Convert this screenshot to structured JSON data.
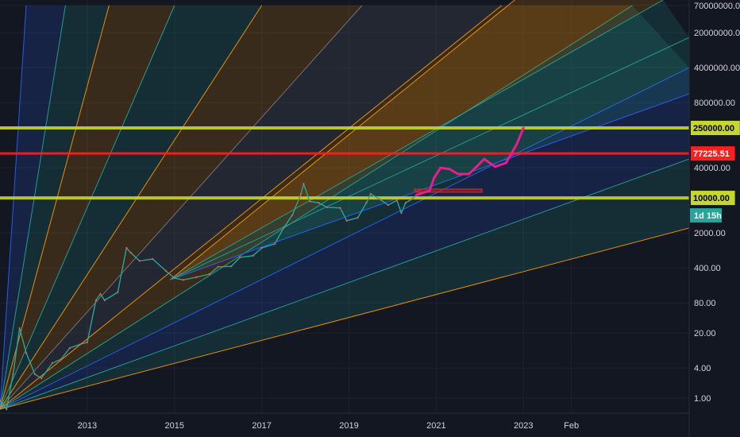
{
  "chart_data": {
    "type": "line",
    "title": "",
    "scale": "log",
    "grid": true,
    "x_ticks": [
      "2013",
      "2015",
      "2017",
      "2019",
      "2021",
      "2023",
      "Feb"
    ],
    "y_ticks": [
      "70000000.00",
      "20000000.00",
      "4000000.00",
      "800000.00",
      "250000.00",
      "77225.51",
      "40000.00",
      "10000.00",
      "2000.00",
      "400.00",
      "80.00",
      "20.00",
      "4.00",
      "1.00"
    ],
    "y_range": [
      0.5,
      90000000
    ],
    "x_range": [
      2011.0,
      2026.8
    ],
    "price_series": {
      "name": "",
      "color": "#26a69a",
      "points": [
        [
          2011.0,
          0.9
        ],
        [
          2011.15,
          0.6
        ],
        [
          2011.3,
          3
        ],
        [
          2011.45,
          25
        ],
        [
          2011.6,
          8
        ],
        [
          2011.8,
          3
        ],
        [
          2011.95,
          2.5
        ],
        [
          2012.2,
          5
        ],
        [
          2012.4,
          6
        ],
        [
          2012.6,
          10
        ],
        [
          2012.85,
          12
        ],
        [
          2013.0,
          13
        ],
        [
          2013.2,
          90
        ],
        [
          2013.3,
          120
        ],
        [
          2013.4,
          90
        ],
        [
          2013.7,
          130
        ],
        [
          2013.9,
          1000
        ],
        [
          2014.0,
          800
        ],
        [
          2014.2,
          550
        ],
        [
          2014.5,
          600
        ],
        [
          2014.8,
          350
        ],
        [
          2015.0,
          250
        ],
        [
          2015.2,
          230
        ],
        [
          2015.5,
          260
        ],
        [
          2015.8,
          300
        ],
        [
          2016.0,
          420
        ],
        [
          2016.3,
          430
        ],
        [
          2016.5,
          650
        ],
        [
          2016.8,
          700
        ],
        [
          2017.0,
          1000
        ],
        [
          2017.3,
          1200
        ],
        [
          2017.5,
          2500
        ],
        [
          2017.7,
          4500
        ],
        [
          2017.9,
          12000
        ],
        [
          2017.96,
          19000
        ],
        [
          2018.1,
          8500
        ],
        [
          2018.3,
          8000
        ],
        [
          2018.5,
          6500
        ],
        [
          2018.8,
          6300
        ],
        [
          2018.95,
          3500
        ],
        [
          2019.2,
          4000
        ],
        [
          2019.4,
          8000
        ],
        [
          2019.5,
          12000
        ],
        [
          2019.7,
          9500
        ],
        [
          2019.9,
          7200
        ],
        [
          2020.1,
          9000
        ],
        [
          2020.2,
          5000
        ],
        [
          2020.3,
          8000
        ],
        [
          2020.45,
          9500
        ],
        [
          2020.55,
          11500
        ]
      ]
    },
    "projection": {
      "name": "",
      "color": "#e91e8c",
      "points": [
        [
          2020.55,
          11500
        ],
        [
          2020.85,
          14000
        ],
        [
          2020.95,
          25000
        ],
        [
          2021.1,
          40000
        ],
        [
          2021.3,
          38000
        ],
        [
          2021.5,
          30000
        ],
        [
          2021.75,
          30000
        ],
        [
          2021.9,
          40000
        ],
        [
          2022.1,
          60000
        ],
        [
          2022.35,
          42000
        ],
        [
          2022.6,
          50000
        ],
        [
          2022.85,
          120000
        ],
        [
          2023.0,
          250000
        ]
      ]
    },
    "horizontal_levels": [
      {
        "value": 250000,
        "color": "#c6d631",
        "label": "250000.00"
      },
      {
        "value": 77225.51,
        "color": "#ff1e1e",
        "label": "77225.51"
      },
      {
        "value": 10000,
        "color": "#c6d631",
        "label": "10000.00"
      }
    ],
    "resistance_box": {
      "x_start": 2020.5,
      "x_end": 2022.05,
      "y_low": 13000,
      "y_high": 15000,
      "color": "#ff1e1e"
    },
    "gann_fans": [
      {
        "origin": [
          2011.0,
          0.6
        ],
        "rays": [
          [
            2011.6,
            70000000,
            "#2962ff"
          ],
          [
            2012.5,
            70000000,
            "#26a69a"
          ],
          [
            2013.5,
            70000000,
            "#ff9800"
          ],
          [
            2015.0,
            70000000,
            "#26a69a"
          ],
          [
            2017.0,
            70000000,
            "#ff9800"
          ],
          [
            2019.3,
            70000000,
            "#787b86"
          ],
          [
            2022.5,
            70000000,
            "#ff9800"
          ],
          [
            2025.5,
            70000000,
            "#26a69a"
          ],
          [
            2026.8,
            4000000,
            "#2962ff"
          ],
          [
            2026.8,
            60000,
            "#26a69a"
          ],
          [
            2026.8,
            2500,
            "#ff9800"
          ]
        ]
      },
      {
        "origin": [
          2014.9,
          230
        ],
        "rays": [
          [
            2022.8,
            90000000,
            "#ff9800"
          ],
          [
            2026.2,
            90000000,
            "#26a69a"
          ],
          [
            2026.8,
            16000000,
            "#26a69a"
          ],
          [
            2026.8,
            1200000,
            "#2962ff"
          ]
        ]
      }
    ],
    "time_badge": "1d 15h"
  }
}
